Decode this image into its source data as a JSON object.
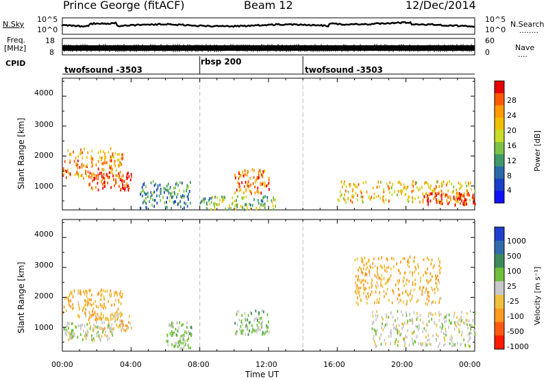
{
  "header": {
    "station": "Prince George (fitACF)",
    "beam": "Beam 12",
    "date": "12/Dec/2014"
  },
  "param_panel": {
    "left_label_1": "N.Sky",
    "left_label_2": "Freq.",
    "left_label_3": "[MHz]",
    "left_label_4": "CPID",
    "right_label_1": "N.Search",
    "right_label_2": "Nave",
    "right_dots_1": "........",
    "right_dots_2": "....",
    "noise_ticks": [
      "10^5",
      "10^0"
    ],
    "freq_ticks": [
      "18",
      "8"
    ],
    "nave_ticks": [
      "60",
      "0"
    ],
    "cpid_segments": [
      {
        "name": "twofsound -3503",
        "start": 0.0,
        "end": 8.0
      },
      {
        "name": "rbsp 200",
        "start": 8.0,
        "end": 14.0
      },
      {
        "name": "twofsound -3503",
        "start": 14.0,
        "end": 24.0
      }
    ]
  },
  "power_colorbar": {
    "label": "Power [dB]",
    "ticks": [
      "28",
      "24",
      "20",
      "16",
      "12",
      "8",
      "4"
    ],
    "colors": [
      "#e60000",
      "#ff5a00",
      "#ff9a00",
      "#f0c000",
      "#c8dc2a",
      "#7dc247",
      "#3f9a6a",
      "#2a6aa8",
      "#1a3fc8",
      "#1010ff"
    ]
  },
  "velocity_colorbar": {
    "label": "Velocity [m s⁻¹]",
    "ticks": [
      "1000",
      "500",
      "100",
      "25",
      "-25",
      "-100",
      "-500",
      "-1000"
    ],
    "colors": [
      "#1f3fcf",
      "#2f6cae",
      "#3e8a5c",
      "#6ec03a",
      "#c8c8c8",
      "#f0c040",
      "#ff9a20",
      "#ff5a10",
      "#ff1a00"
    ]
  },
  "x_axis": {
    "ticks": [
      "00:00",
      "04:00",
      "08:00",
      "12:00",
      "16:00",
      "20:00",
      "00:00"
    ],
    "label": "Time UT"
  },
  "y_axis": {
    "label": "Slant Range [km]",
    "ticks": [
      "4000",
      "3000",
      "2000",
      "1000"
    ]
  },
  "chart_data": {
    "type": "heatmap",
    "title": "Prince George (fitACF) Beam 12 12/Dec/2014",
    "xlabel": "Time UT",
    "ylabel": "Slant Range [km]",
    "xlim": [
      0,
      24
    ],
    "ylim": [
      200,
      4600
    ],
    "grid": false,
    "series": [
      {
        "name": "Power [dB]",
        "zlim": [
          0,
          30
        ],
        "features": [
          {
            "t": [
              0.0,
              3.5
            ],
            "range": [
              1300,
              2300
            ],
            "value": 22
          },
          {
            "t": [
              1.5,
              4.0
            ],
            "range": [
              900,
              1500
            ],
            "value": 27
          },
          {
            "t": [
              4.5,
              7.5
            ],
            "range": [
              300,
              1200
            ],
            "value": 10
          },
          {
            "t": [
              8.0,
              12.5
            ],
            "range": [
              250,
              700
            ],
            "value": 14
          },
          {
            "t": [
              10.0,
              12.0
            ],
            "range": [
              800,
              1600
            ],
            "value": 24
          },
          {
            "t": [
              16.0,
              24.0
            ],
            "range": [
              500,
              1200
            ],
            "value": 20
          },
          {
            "t": [
              21.0,
              24.0
            ],
            "range": [
              400,
              800
            ],
            "value": 28
          }
        ]
      },
      {
        "name": "Velocity [m s⁻¹]",
        "zlim": [
          -1000,
          1000
        ],
        "features": [
          {
            "t": [
              0.0,
              3.5
            ],
            "range": [
              1300,
              2300
            ],
            "value": -300
          },
          {
            "t": [
              1.5,
              4.0
            ],
            "range": [
              900,
              1500
            ],
            "value": -200
          },
          {
            "t": [
              0.0,
              3.0
            ],
            "range": [
              600,
              1200
            ],
            "value": 0
          },
          {
            "t": [
              6.0,
              7.5
            ],
            "range": [
              300,
              1200
            ],
            "value": 150
          },
          {
            "t": [
              10.0,
              12.0
            ],
            "range": [
              800,
              1600
            ],
            "value": 200
          },
          {
            "t": [
              18.0,
              24.0
            ],
            "range": [
              400,
              1600
            ],
            "value": 0
          },
          {
            "t": [
              17.0,
              22.0
            ],
            "range": [
              1800,
              3400
            ],
            "value": -300
          }
        ]
      }
    ]
  }
}
